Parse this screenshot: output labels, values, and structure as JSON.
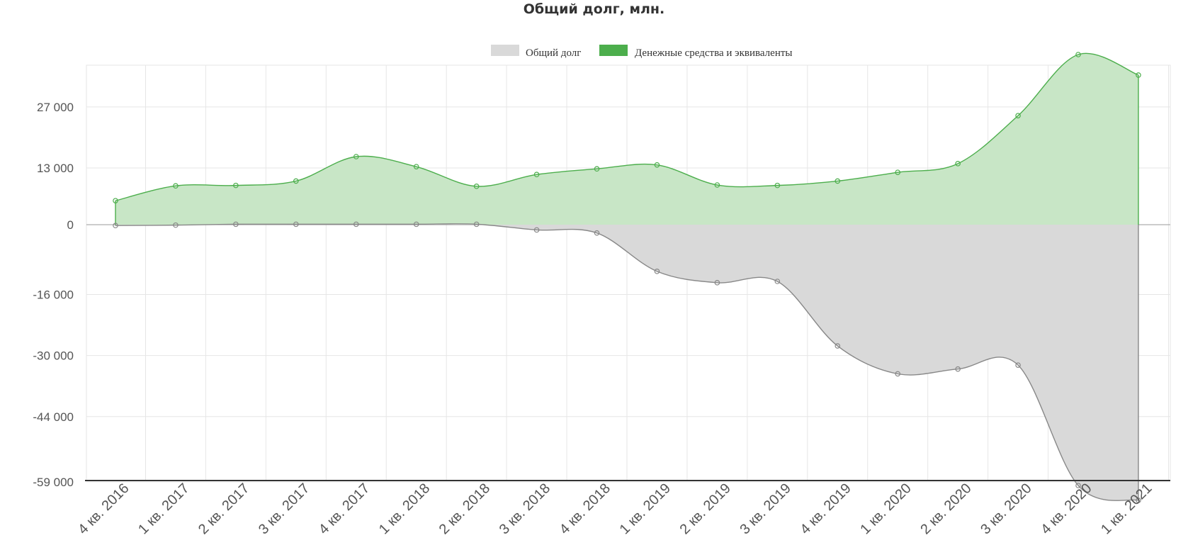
{
  "chart_data": {
    "type": "area",
    "title": "Общий долг, млн.",
    "xlabel": "",
    "ylabel": "",
    "categories": [
      "4 кв. 2016",
      "1 кв. 2017",
      "2 кв. 2017",
      "3 кв. 2017",
      "4 кв. 2017",
      "1 кв. 2018",
      "2 кв. 2018",
      "3 кв. 2018",
      "4 кв. 2018",
      "1 кв. 2019",
      "2 кв. 2019",
      "3 кв. 2019",
      "4 кв. 2019",
      "1 кв. 2020",
      "2 кв. 2020",
      "3 кв. 2020",
      "4 кв. 2020",
      "1 кв. 2021"
    ],
    "yticks": [
      27000,
      13000,
      0,
      -16000,
      -30000,
      -44000,
      -59000
    ],
    "ytick_labels": [
      "27 000",
      "13 000",
      "0",
      "-16 000",
      "-30 000",
      "-44 000",
      "-59 000"
    ],
    "ylim": [
      -63200,
      39000
    ],
    "grid": true,
    "legend_position": "top",
    "series": [
      {
        "name": "Общий долг",
        "color": "#d9d9d9",
        "line_color": "#888888",
        "values": [
          -200,
          -100,
          100,
          100,
          100,
          100,
          100,
          -1200,
          -1900,
          -10700,
          -13300,
          -13000,
          -27800,
          -34200,
          -33100,
          -32200,
          -59800,
          -63200
        ]
      },
      {
        "name": "Денежные средства и эквиваленты",
        "color": "#4cae4c",
        "fill": "#c8e6c6",
        "line_color": "#4cae4c",
        "values": [
          5500,
          8900,
          9000,
          10000,
          15600,
          13300,
          8800,
          11500,
          12800,
          13700,
          9100,
          9000,
          10000,
          12000,
          14000,
          25000,
          39000,
          34300
        ]
      }
    ]
  }
}
